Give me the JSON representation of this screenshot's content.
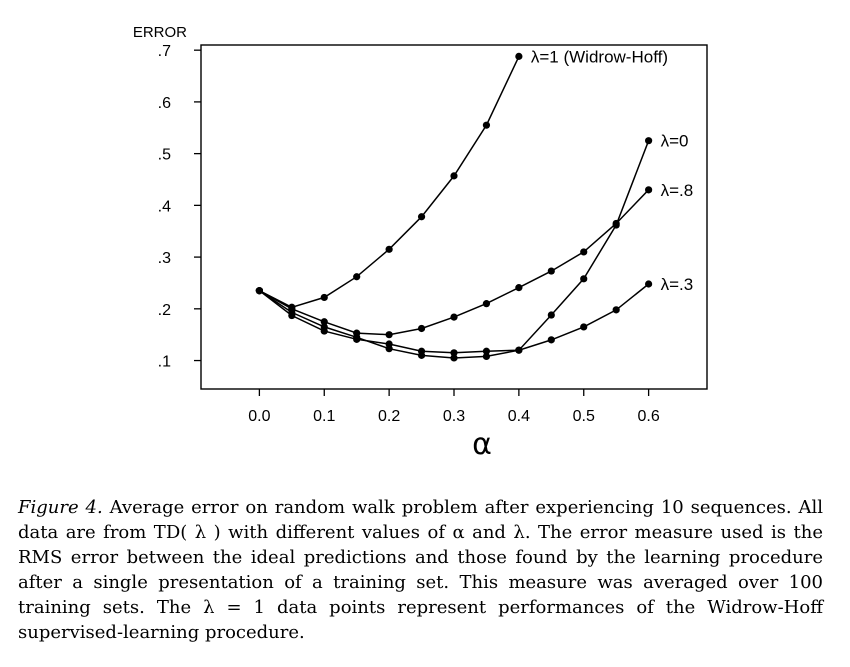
{
  "chart_data": {
    "type": "line",
    "ylabel": "ERROR",
    "xlabel": "α",
    "x_ticks": [
      "0.0",
      "0.1",
      "0.2",
      "0.3",
      "0.4",
      "0.5",
      "0.6"
    ],
    "y_ticks": [
      ".1",
      ".2",
      ".3",
      ".4",
      ".5",
      ".6",
      ".7"
    ],
    "xlim": [
      -0.09,
      0.69
    ],
    "ylim": [
      0.045,
      0.71
    ],
    "grid": false,
    "series": [
      {
        "name": "λ=1 (Widrow-Hoff)",
        "x": [
          0.0,
          0.05,
          0.1,
          0.15,
          0.2,
          0.25,
          0.3,
          0.35,
          0.4
        ],
        "y": [
          0.235,
          0.203,
          0.222,
          0.262,
          0.315,
          0.378,
          0.457,
          0.555,
          0.688
        ]
      },
      {
        "name": "λ=0",
        "x": [
          0.0,
          0.05,
          0.1,
          0.15,
          0.2,
          0.25,
          0.3,
          0.35,
          0.4,
          0.45,
          0.5,
          0.55,
          0.6
        ],
        "y": [
          0.235,
          0.193,
          0.165,
          0.145,
          0.123,
          0.11,
          0.105,
          0.108,
          0.12,
          0.188,
          0.258,
          0.362,
          0.525
        ]
      },
      {
        "name": "λ=.8",
        "x": [
          0.0,
          0.05,
          0.1,
          0.15,
          0.2,
          0.25,
          0.3,
          0.35,
          0.4,
          0.45,
          0.5,
          0.55,
          0.6
        ],
        "y": [
          0.235,
          0.2,
          0.175,
          0.153,
          0.15,
          0.162,
          0.184,
          0.21,
          0.241,
          0.273,
          0.31,
          0.365,
          0.43
        ]
      },
      {
        "name": "λ=.3",
        "x": [
          0.0,
          0.05,
          0.1,
          0.15,
          0.2,
          0.25,
          0.3,
          0.35,
          0.4,
          0.45,
          0.5,
          0.55,
          0.6
        ],
        "y": [
          0.235,
          0.187,
          0.157,
          0.141,
          0.132,
          0.118,
          0.115,
          0.118,
          0.12,
          0.14,
          0.165,
          0.198,
          0.248
        ]
      }
    ]
  },
  "caption": {
    "label": "Figure 4.",
    "text": "Average error on random walk problem after experiencing 10 sequences. All data are from TD( λ ) with different values of α and λ. The error measure used is the RMS error between the ideal predictions and those found by the learning procedure after a single presentation of a training set. This measure was averaged over 100 training sets. The λ = 1 data points represent performances of the Widrow-Hoff supervised-learning procedure."
  }
}
